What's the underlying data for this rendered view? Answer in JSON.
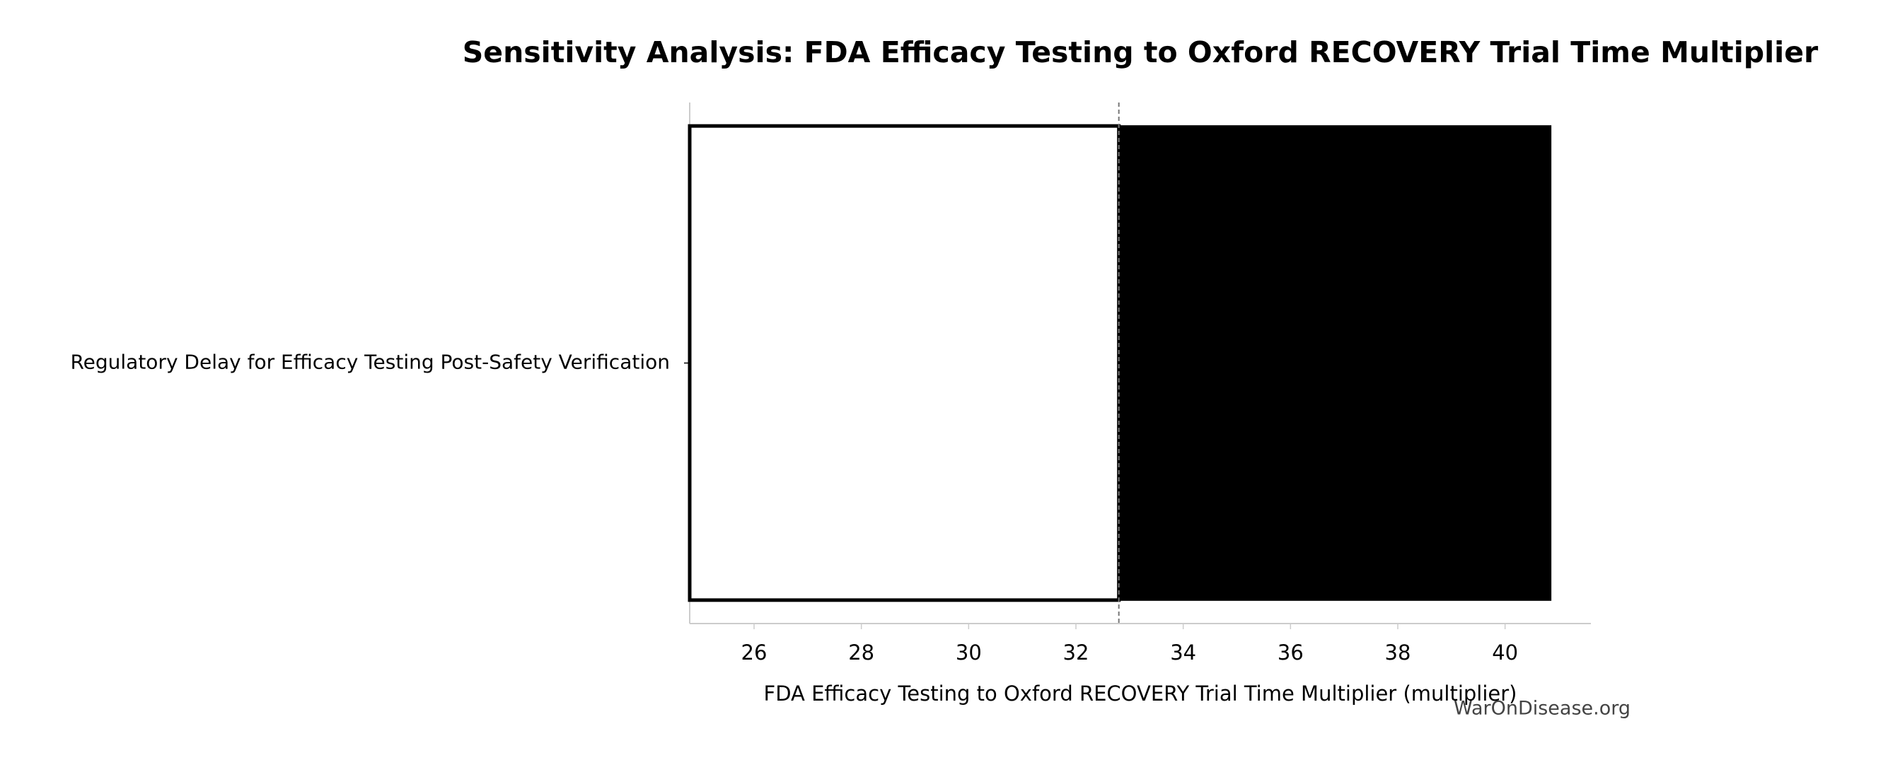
{
  "chart_data": {
    "type": "tornado",
    "title": "Sensitivity Analysis: FDA Efficacy Testing to Oxford RECOVERY Trial Time Multiplier",
    "xlabel": "FDA Efficacy Testing to Oxford RECOVERY Trial Time Multiplier (multiplier)",
    "categories": [
      "Regulatory Delay for Efficacy Testing Post-Safety Verification"
    ],
    "low": [
      24.8
    ],
    "high": [
      40.85
    ],
    "baseline": 32.8,
    "low_color": "#ffffff",
    "high_color": "#000000",
    "xlim": [
      24.8,
      41.6
    ],
    "xticks": [
      26,
      28,
      30,
      32,
      34,
      36,
      38,
      40
    ],
    "watermark": "WarOnDisease.org"
  }
}
